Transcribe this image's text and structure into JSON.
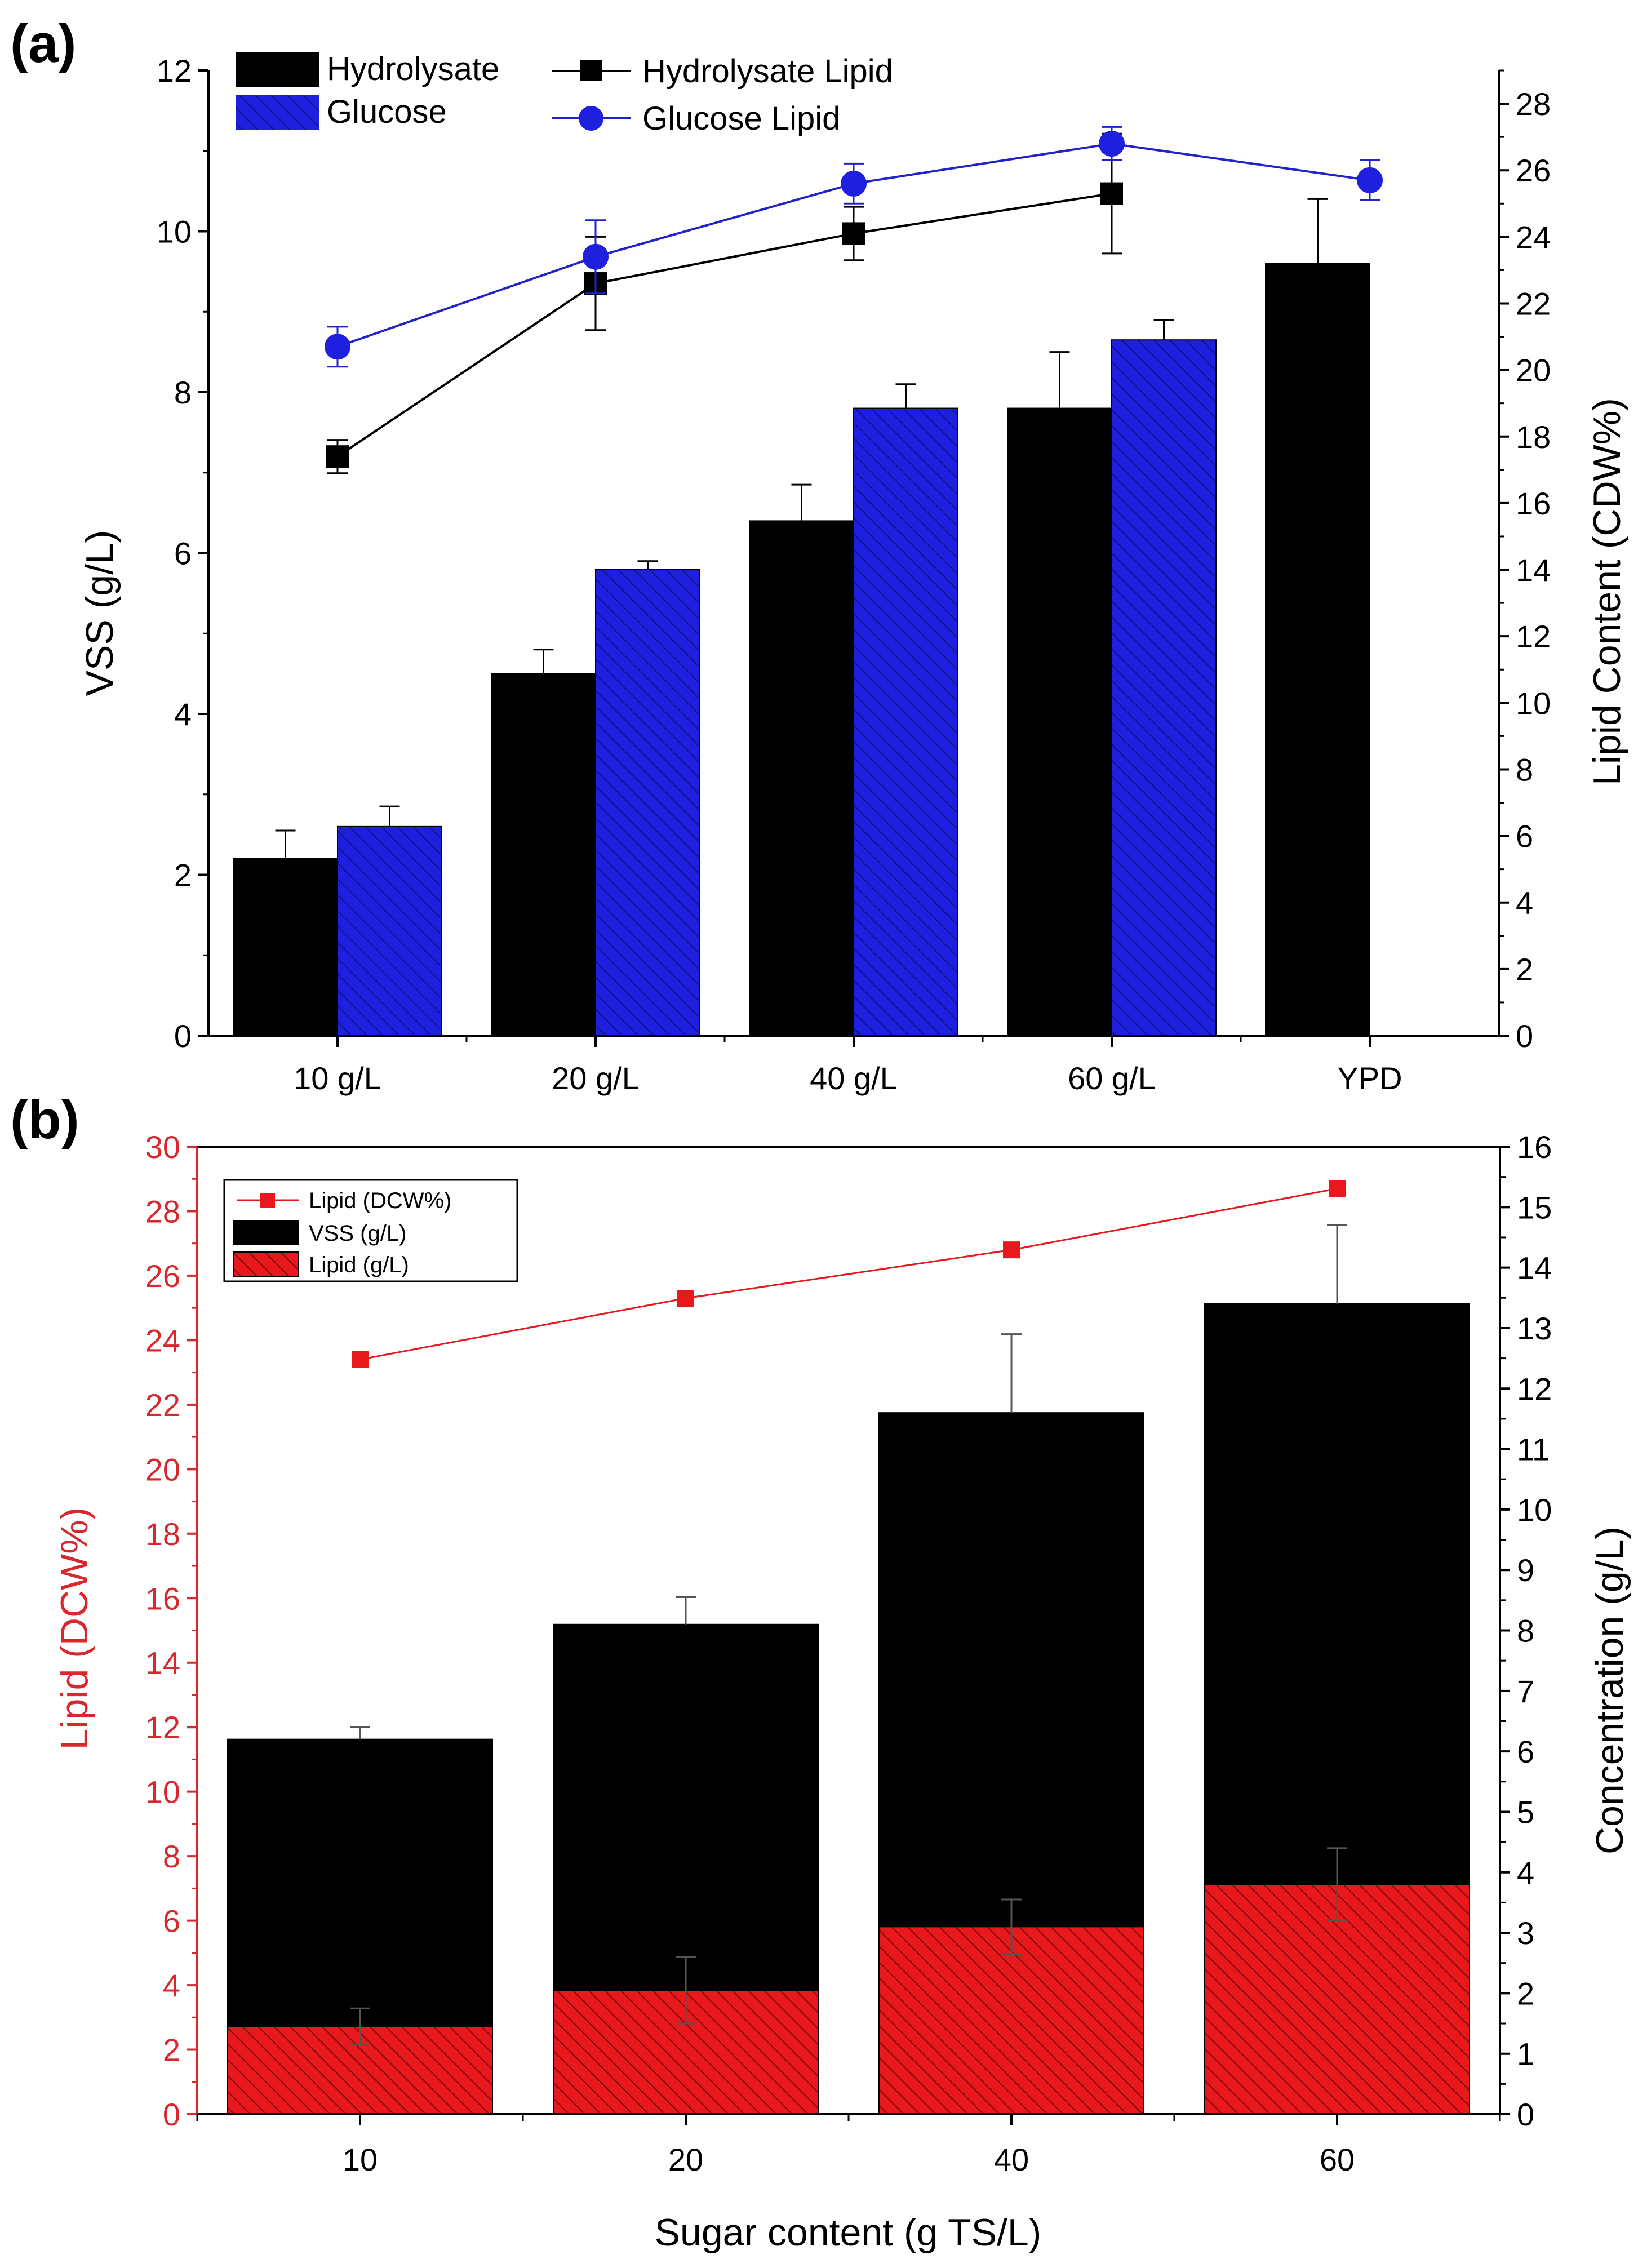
{
  "colors": {
    "hydrolysate": "#000000",
    "glucose_bar": "#1f1fe0",
    "glucose_line": "#2222cc",
    "lipid_red": "#e8181c",
    "red_text": "#d8272d",
    "axis": "#000000"
  },
  "icons": [
    "hatch-pattern"
  ],
  "chart_data": [
    {
      "panel_label": "(a)",
      "type": "bar",
      "categories": [
        "10 g/L",
        "20 g/L",
        "40 g/L",
        "60 g/L",
        "YPD"
      ],
      "ylabel_left": "VSS (g/L)",
      "ylabel_right": "Lipid Content (CDW%)",
      "ylim_left": [
        0,
        12
      ],
      "yticks_left": [
        "0",
        "2",
        "4",
        "6",
        "8",
        "10",
        "12"
      ],
      "ylim_right": [
        0,
        29
      ],
      "yticks_right": [
        "0",
        "2",
        "4",
        "6",
        "8",
        "10",
        "12",
        "14",
        "16",
        "18",
        "20",
        "22",
        "24",
        "26",
        "28"
      ],
      "legend_position": "top-left",
      "grid": false,
      "bar_series": [
        {
          "name": "Hydrolysate",
          "values": [
            2.2,
            4.5,
            6.4,
            7.8,
            9.6
          ],
          "errors": [
            0.35,
            0.3,
            0.45,
            0.7,
            0.8
          ],
          "fill": "solid"
        },
        {
          "name": "Glucose",
          "values": [
            2.6,
            5.8,
            7.8,
            8.65,
            null
          ],
          "errors": [
            0.25,
            0.1,
            0.3,
            0.25,
            null
          ],
          "fill": "hatched"
        }
      ],
      "line_series": [
        {
          "name": "Hydrolysate Lipid",
          "values": [
            17.4,
            22.6,
            24.1,
            25.3,
            null
          ],
          "errors": [
            0.5,
            1.4,
            0.8,
            1.8,
            null
          ],
          "marker": "square"
        },
        {
          "name": "Glucose Lipid",
          "values": [
            20.7,
            23.4,
            25.6,
            26.8,
            25.7
          ],
          "errors": [
            0.6,
            1.1,
            0.6,
            0.5,
            0.6
          ],
          "marker": "circle"
        }
      ]
    },
    {
      "panel_label": "(b)",
      "type": "bar",
      "categories": [
        "10",
        "20",
        "40",
        "60"
      ],
      "xlabel": "Sugar content (g TS/L)",
      "ylabel_left": "Lipid (DCW%)",
      "ylabel_right": "Concentration (g/L)",
      "ylim_left": [
        0,
        30
      ],
      "yticks_left": [
        "0",
        "2",
        "4",
        "6",
        "8",
        "10",
        "12",
        "14",
        "16",
        "18",
        "20",
        "22",
        "24",
        "26",
        "28",
        "30"
      ],
      "ylim_right": [
        0,
        16
      ],
      "yticks_right": [
        "0",
        "1",
        "2",
        "3",
        "4",
        "5",
        "6",
        "7",
        "8",
        "9",
        "10",
        "11",
        "12",
        "13",
        "14",
        "15",
        "16"
      ],
      "legend_position": "top-left",
      "grid": false,
      "line_series": [
        {
          "name": "Lipid (DCW%)",
          "values": [
            23.4,
            25.3,
            26.8,
            28.7
          ],
          "marker": "square",
          "axis": "left"
        }
      ],
      "bar_series": [
        {
          "name": "VSS (g/L)",
          "values": [
            6.2,
            8.1,
            11.6,
            13.4
          ],
          "errors": [
            0.2,
            0.45,
            1.3,
            1.3
          ],
          "fill": "solid",
          "axis": "right"
        },
        {
          "name": "Lipid (g/L)",
          "values": [
            1.45,
            2.05,
            3.1,
            3.8
          ],
          "errors": [
            0.3,
            0.55,
            0.45,
            0.6
          ],
          "fill": "hatched",
          "axis": "right"
        }
      ]
    }
  ]
}
